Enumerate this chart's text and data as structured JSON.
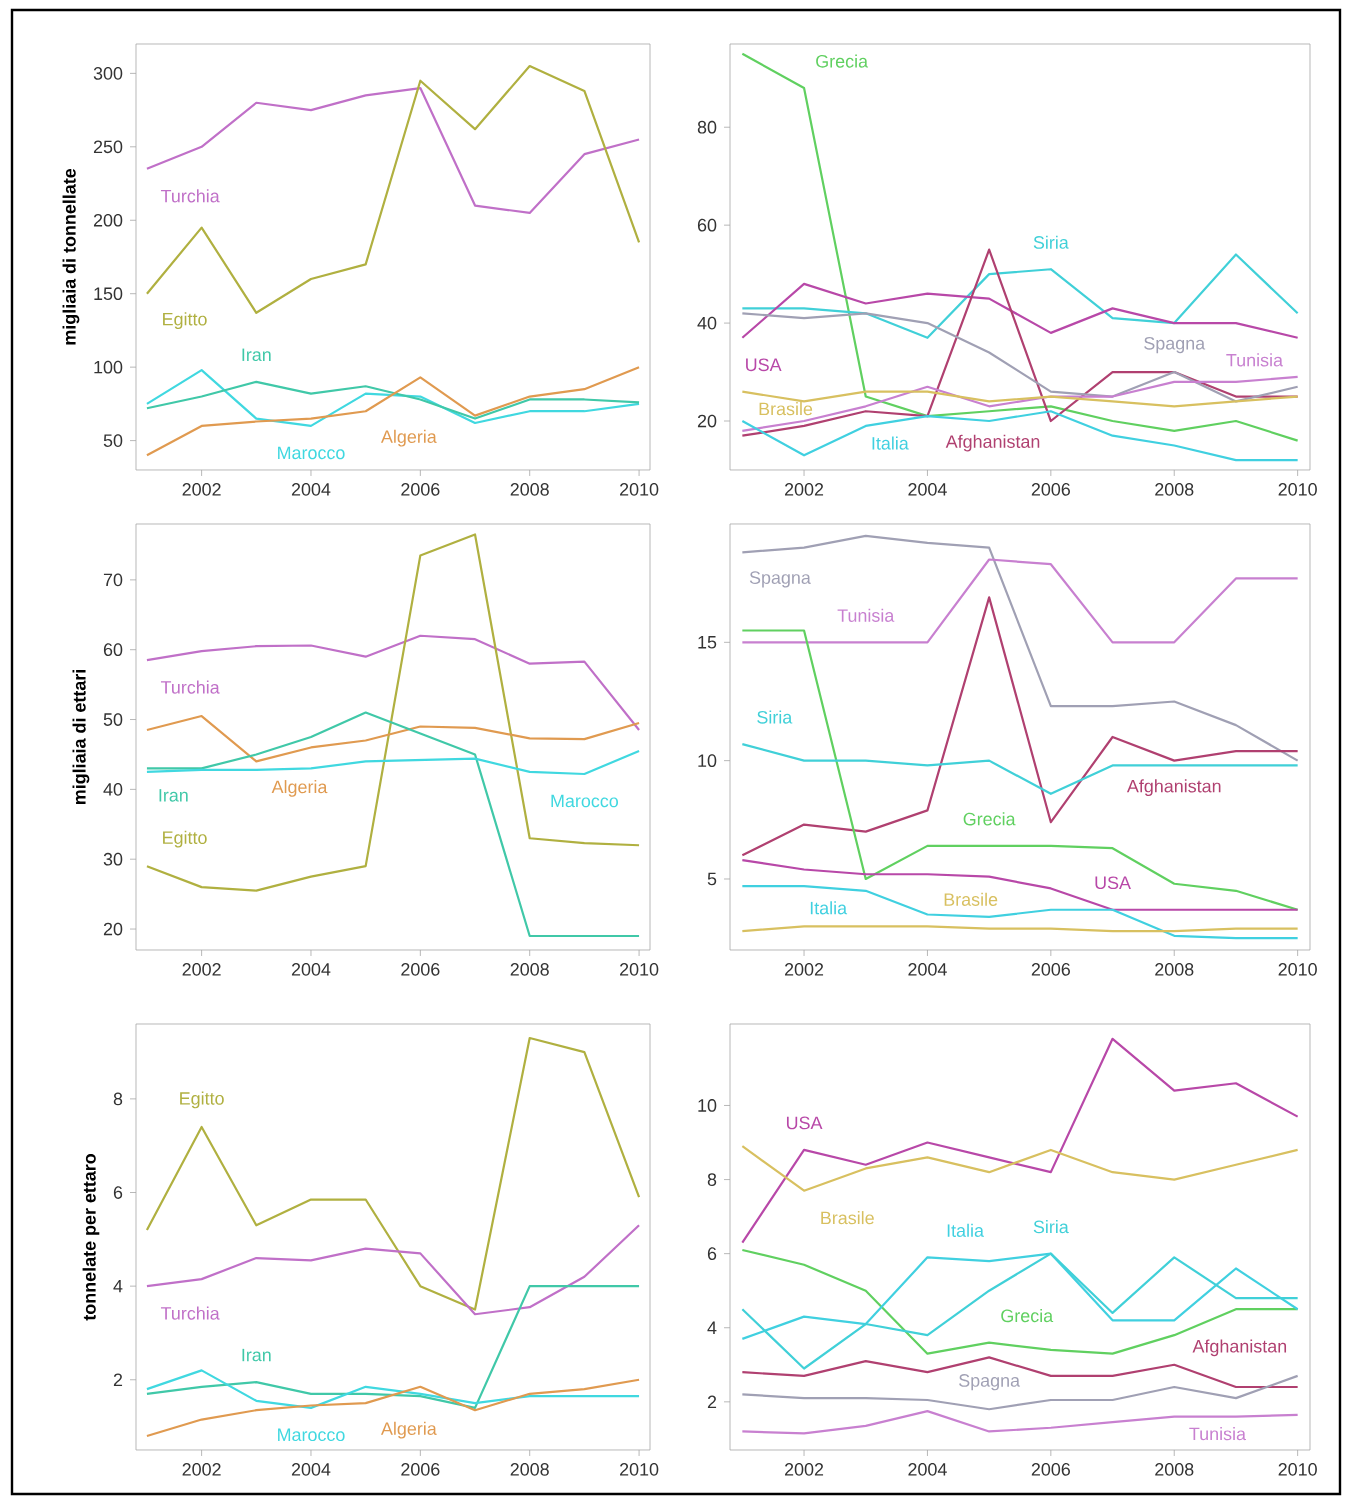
{
  "chart_data": [
    {
      "type": "line",
      "ylabel": "migliaia di tonnellate",
      "x": [
        2001,
        2002,
        2003,
        2004,
        2005,
        2006,
        2007,
        2008,
        2009,
        2010
      ],
      "xlim": [
        2000.8,
        2010.2
      ],
      "xticks": [
        2002,
        2004,
        2006,
        2008,
        2010
      ],
      "ylim": [
        30,
        320
      ],
      "yticks": [
        50,
        100,
        150,
        200,
        250,
        300
      ],
      "grid": false,
      "legend": false,
      "series": [
        {
          "name": "Turchia",
          "color": "#c070c8",
          "values": [
            235,
            250,
            280,
            275,
            285,
            290,
            210,
            205,
            245,
            255
          ]
        },
        {
          "name": "Egitto",
          "color": "#b0b040",
          "values": [
            150,
            195,
            137,
            160,
            170,
            295,
            262,
            305,
            288,
            185
          ]
        },
        {
          "name": "Marocco",
          "color": "#40d8e0",
          "values": [
            75,
            98,
            65,
            60,
            82,
            80,
            62,
            70,
            70,
            75
          ]
        },
        {
          "name": "Iran",
          "color": "#40c8a8",
          "values": [
            72,
            80,
            90,
            82,
            87,
            78,
            65,
            78,
            78,
            76
          ]
        },
        {
          "name": "Algeria",
          "color": "#e09a50",
          "values": [
            40,
            60,
            63,
            65,
            70,
            93,
            67,
            80,
            85,
            100
          ]
        }
      ]
    },
    {
      "type": "line",
      "x": [
        2001,
        2002,
        2003,
        2004,
        2005,
        2006,
        2007,
        2008,
        2009,
        2010
      ],
      "xlim": [
        2000.8,
        2010.2
      ],
      "xticks": [
        2002,
        2004,
        2006,
        2008,
        2010
      ],
      "ylim": [
        10,
        97
      ],
      "yticks": [
        20,
        40,
        60,
        80
      ],
      "grid": false,
      "legend": false,
      "series": [
        {
          "name": "Grecia",
          "color": "#60d060",
          "values": [
            95,
            88,
            25,
            21,
            22,
            23,
            20,
            18,
            20,
            16
          ]
        },
        {
          "name": "Siria",
          "color": "#40d0d8",
          "values": [
            43,
            43,
            42,
            37,
            50,
            51,
            41,
            40,
            54,
            42
          ]
        },
        {
          "name": "USA",
          "color": "#b848a8",
          "values": [
            37,
            48,
            44,
            46,
            45,
            38,
            43,
            40,
            40,
            37
          ]
        },
        {
          "name": "Afghanistan",
          "color": "#b04070",
          "values": [
            17,
            19,
            22,
            21,
            55,
            20,
            30,
            30,
            25,
            25
          ]
        },
        {
          "name": "Spagna",
          "color": "#a0a0b4",
          "values": [
            42,
            41,
            42,
            40,
            34,
            26,
            25,
            30,
            24,
            27
          ]
        },
        {
          "name": "Tunisia",
          "color": "#c880d0",
          "values": [
            18,
            20,
            23,
            27,
            23,
            25,
            25,
            28,
            28,
            29
          ]
        },
        {
          "name": "Brasile",
          "color": "#d8c060",
          "values": [
            26,
            24,
            26,
            26,
            24,
            25,
            24,
            23,
            24,
            25
          ]
        },
        {
          "name": "Italia",
          "color": "#40d0e0",
          "values": [
            20,
            13,
            19,
            21,
            20,
            22,
            17,
            15,
            12,
            12
          ]
        }
      ]
    },
    {
      "type": "line",
      "ylabel": "migliaia di ettari",
      "x": [
        2001,
        2002,
        2003,
        2004,
        2005,
        2006,
        2007,
        2008,
        2009,
        2010
      ],
      "xlim": [
        2000.8,
        2010.2
      ],
      "xticks": [
        2002,
        2004,
        2006,
        2008,
        2010
      ],
      "ylim": [
        17,
        78
      ],
      "yticks": [
        20,
        30,
        40,
        50,
        60,
        70
      ],
      "grid": false,
      "legend": false,
      "series": [
        {
          "name": "Turchia",
          "color": "#c070c8",
          "values": [
            58.5,
            59.8,
            60.5,
            60.6,
            59,
            62,
            61.5,
            58,
            58.3,
            48.5
          ]
        },
        {
          "name": "Egitto",
          "color": "#b0b040",
          "values": [
            29,
            26,
            25.5,
            27.5,
            29,
            73.5,
            76.5,
            33,
            32.3,
            32
          ]
        },
        {
          "name": "Algeria",
          "color": "#e09a50",
          "values": [
            48.5,
            50.5,
            44,
            46,
            47,
            49,
            48.8,
            47.3,
            47.2,
            49.5
          ]
        },
        {
          "name": "Iran",
          "color": "#40c8a8",
          "values": [
            43,
            43,
            45,
            47.5,
            51,
            48,
            45,
            19,
            19,
            19
          ]
        },
        {
          "name": "Marocco",
          "color": "#40d8e0",
          "values": [
            42.5,
            42.8,
            42.8,
            43,
            44,
            44.2,
            44.4,
            42.5,
            42.2,
            45.5
          ]
        }
      ]
    },
    {
      "type": "line",
      "x": [
        2001,
        2002,
        2003,
        2004,
        2005,
        2006,
        2007,
        2008,
        2009,
        2010
      ],
      "xlim": [
        2000.8,
        2010.2
      ],
      "xticks": [
        2002,
        2004,
        2006,
        2008,
        2010
      ],
      "ylim": [
        2,
        20
      ],
      "yticks": [
        5,
        10,
        15
      ],
      "grid": false,
      "legend": false,
      "series": [
        {
          "name": "Spagna",
          "color": "#a0a0b4",
          "values": [
            18.8,
            19,
            19.5,
            19.2,
            19,
            12.3,
            12.3,
            12.5,
            11.5,
            10
          ]
        },
        {
          "name": "Tunisia",
          "color": "#c880d0",
          "values": [
            15,
            15,
            15,
            15,
            18.5,
            18.3,
            15,
            15,
            17.7,
            17.7
          ]
        },
        {
          "name": "Afghanistan",
          "color": "#b04070",
          "values": [
            6,
            7.3,
            7,
            7.9,
            16.9,
            7.4,
            11,
            10,
            10.4,
            10.4
          ]
        },
        {
          "name": "Grecia",
          "color": "#60d060",
          "values": [
            15.5,
            15.5,
            5,
            6.4,
            6.4,
            6.4,
            6.3,
            4.8,
            4.5,
            3.7
          ]
        },
        {
          "name": "Siria",
          "color": "#40d0d8",
          "values": [
            10.7,
            10,
            10,
            9.8,
            10,
            8.6,
            9.8,
            9.8,
            9.8,
            9.8
          ]
        },
        {
          "name": "USA",
          "color": "#b848a8",
          "values": [
            5.8,
            5.4,
            5.2,
            5.2,
            5.1,
            4.6,
            3.7,
            3.7,
            3.7,
            3.7
          ]
        },
        {
          "name": "Italia",
          "color": "#40d0e0",
          "values": [
            4.7,
            4.7,
            4.5,
            3.5,
            3.4,
            3.7,
            3.7,
            2.6,
            2.5,
            2.5
          ]
        },
        {
          "name": "Brasile",
          "color": "#d8c060",
          "values": [
            2.8,
            3,
            3,
            3,
            2.9,
            2.9,
            2.8,
            2.8,
            2.9,
            2.9
          ]
        }
      ]
    },
    {
      "type": "line",
      "ylabel": "tonnelate per ettaro",
      "x": [
        2001,
        2002,
        2003,
        2004,
        2005,
        2006,
        2007,
        2008,
        2009,
        2010
      ],
      "xlim": [
        2000.8,
        2010.2
      ],
      "xticks": [
        2002,
        2004,
        2006,
        2008,
        2010
      ],
      "ylim": [
        0.5,
        9.6
      ],
      "yticks": [
        2,
        4,
        6,
        8
      ],
      "grid": false,
      "legend": false,
      "series": [
        {
          "name": "Egitto",
          "color": "#b0b040",
          "values": [
            5.2,
            7.4,
            5.3,
            5.85,
            5.85,
            4.0,
            3.5,
            9.3,
            9.0,
            5.9
          ]
        },
        {
          "name": "Turchia",
          "color": "#c070c8",
          "values": [
            4.0,
            4.15,
            4.6,
            4.55,
            4.8,
            4.7,
            3.4,
            3.55,
            4.2,
            5.3
          ]
        },
        {
          "name": "Iran",
          "color": "#40c8a8",
          "values": [
            1.7,
            1.85,
            1.95,
            1.7,
            1.7,
            1.65,
            1.4,
            4.0,
            4.0,
            4.0
          ]
        },
        {
          "name": "Marocco",
          "color": "#40d8e0",
          "values": [
            1.8,
            2.2,
            1.55,
            1.4,
            1.85,
            1.7,
            1.5,
            1.65,
            1.65,
            1.65
          ]
        },
        {
          "name": "Algeria",
          "color": "#e09a50",
          "values": [
            0.8,
            1.15,
            1.35,
            1.45,
            1.5,
            1.85,
            1.35,
            1.7,
            1.8,
            2.0
          ]
        }
      ]
    },
    {
      "type": "line",
      "x": [
        2001,
        2002,
        2003,
        2004,
        2005,
        2006,
        2007,
        2008,
        2009,
        2010
      ],
      "xlim": [
        2000.8,
        2010.2
      ],
      "xticks": [
        2002,
        2004,
        2006,
        2008,
        2010
      ],
      "ylim": [
        0.7,
        12.2
      ],
      "yticks": [
        2,
        4,
        6,
        8,
        10
      ],
      "grid": false,
      "legend": false,
      "series": [
        {
          "name": "USA",
          "color": "#b848a8",
          "values": [
            6.3,
            8.8,
            8.4,
            9,
            8.6,
            8.2,
            11.8,
            10.4,
            10.6,
            9.7
          ]
        },
        {
          "name": "Brasile",
          "color": "#d8c060",
          "values": [
            8.9,
            7.7,
            8.3,
            8.6,
            8.2,
            8.8,
            8.2,
            8,
            8.4,
            8.8
          ]
        },
        {
          "name": "Grecia",
          "color": "#60d060",
          "values": [
            6.1,
            5.7,
            5.0,
            3.3,
            3.6,
            3.4,
            3.3,
            3.8,
            4.5,
            4.5
          ]
        },
        {
          "name": "Italia",
          "color": "#40d0e0",
          "values": [
            3.7,
            4.3,
            4.1,
            5.9,
            5.8,
            6.0,
            4.2,
            4.2,
            5.6,
            4.5
          ]
        },
        {
          "name": "Siria",
          "color": "#40d0d8",
          "values": [
            4.5,
            2.9,
            4.1,
            3.8,
            5.0,
            6.0,
            4.4,
            5.9,
            4.8,
            4.8
          ]
        },
        {
          "name": "Afghanistan",
          "color": "#b04070",
          "values": [
            2.8,
            2.7,
            3.1,
            2.8,
            3.2,
            2.7,
            2.7,
            3.0,
            2.4,
            2.4
          ]
        },
        {
          "name": "Spagna",
          "color": "#a0a0b4",
          "values": [
            2.2,
            2.1,
            2.1,
            2.05,
            1.8,
            2.05,
            2.05,
            2.4,
            2.1,
            2.7
          ]
        },
        {
          "name": "Tunisia",
          "color": "#c880d0",
          "values": [
            1.2,
            1.15,
            1.35,
            1.75,
            1.2,
            1.3,
            1.45,
            1.6,
            1.6,
            1.65
          ]
        }
      ]
    }
  ]
}
